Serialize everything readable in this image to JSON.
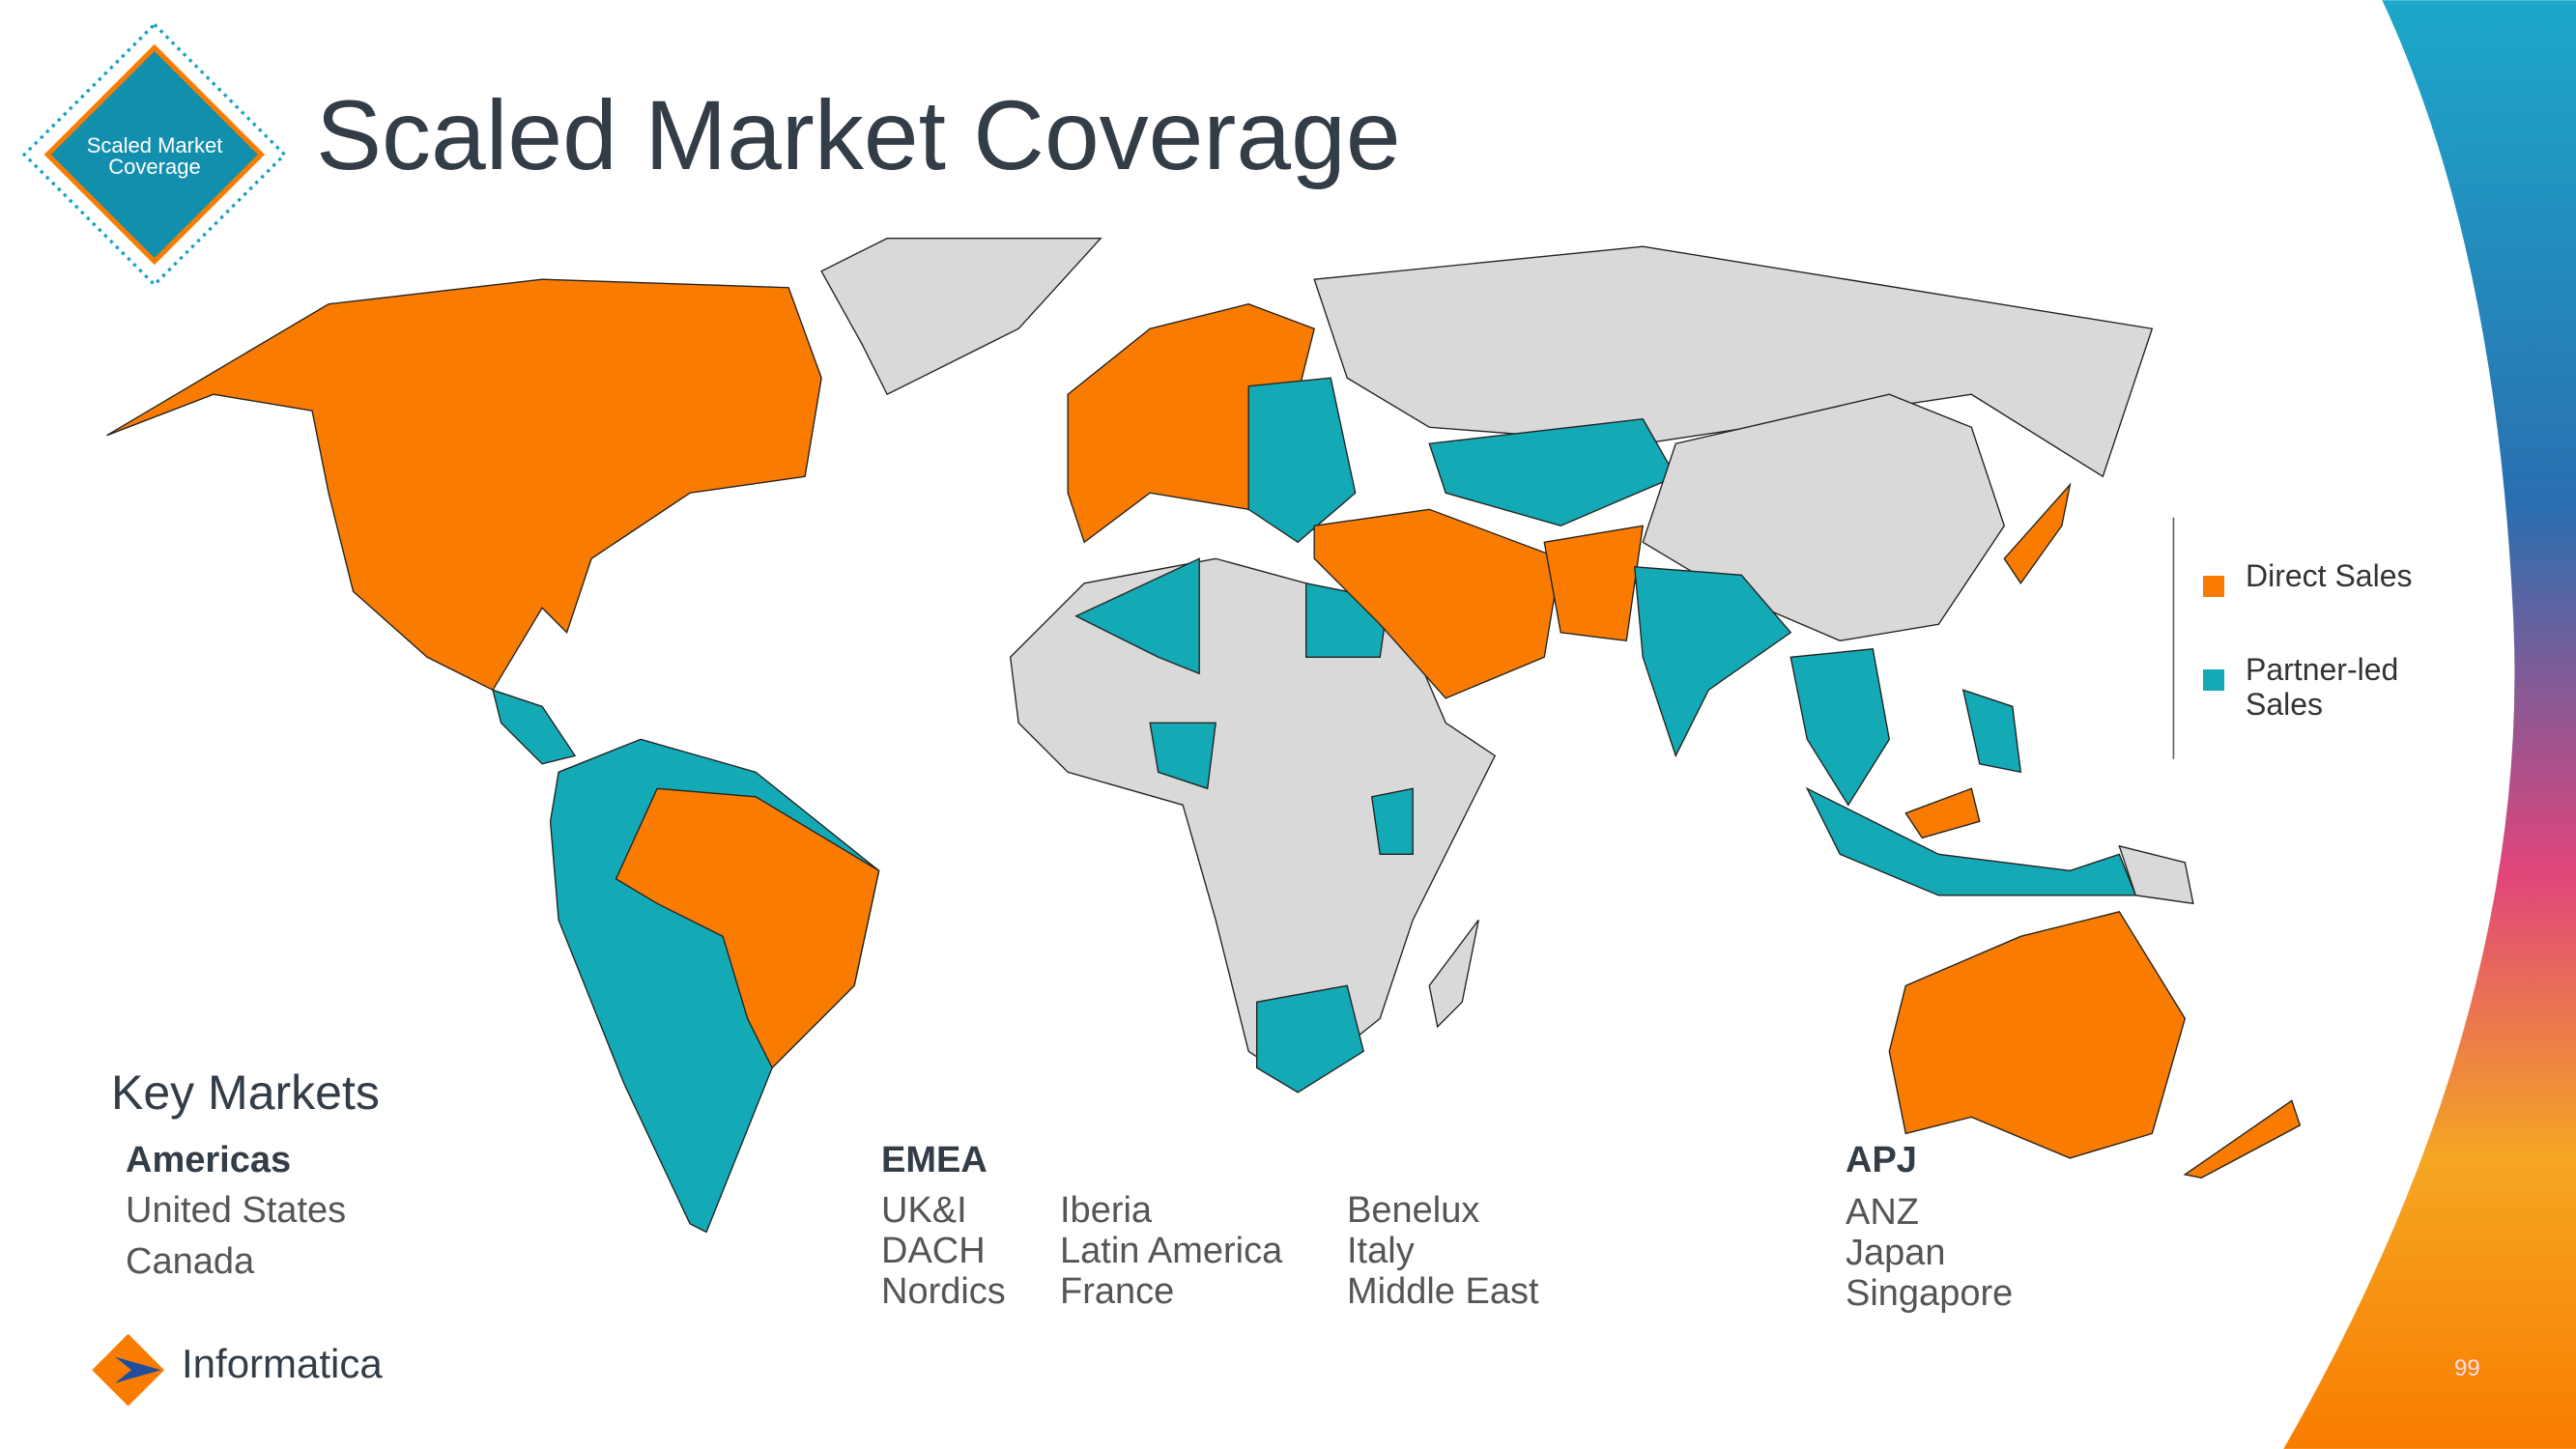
{
  "badge": "Scaled Market Coverage",
  "title": "Scaled Market Coverage",
  "legend": [
    {
      "label": "Direct Sales",
      "color": "#f97c00"
    },
    {
      "label": "Partner-led Sales",
      "color": "#13a9b5"
    }
  ],
  "key_markets": {
    "heading": "Key Markets",
    "regions": [
      {
        "name": "Americas",
        "columns": [
          [
            "United States",
            "Canada"
          ]
        ]
      },
      {
        "name": "EMEA",
        "columns": [
          [
            "UK&I",
            "DACH",
            "Nordics"
          ],
          [
            "Iberia",
            "Latin America",
            "France"
          ],
          [
            "Benelux",
            "Italy",
            "Middle East"
          ]
        ]
      },
      {
        "name": "APJ",
        "columns": [
          [
            "ANZ",
            "Japan",
            "Singapore"
          ]
        ]
      }
    ]
  },
  "footer": {
    "logo": "Informatica",
    "page": "99"
  }
}
